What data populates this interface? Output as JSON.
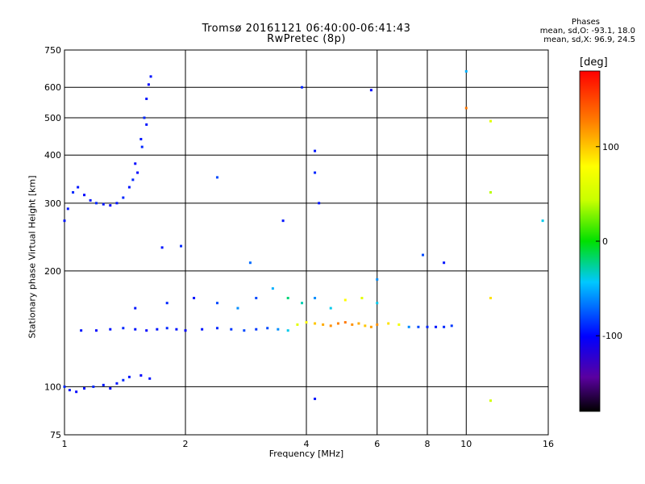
{
  "chart_data": {
    "type": "scatter",
    "title_line1": "Tromsø 20161121 06:40:00-06:41:43",
    "title_line2": "RwPretec (8p)",
    "xlabel": "Frequency [MHz]",
    "ylabel": "Stationary phase Virtual Height [km]",
    "x_scale": "log",
    "y_scale": "log",
    "xlim": [
      1,
      16
    ],
    "ylim": [
      75,
      750
    ],
    "x_ticks": [
      1,
      2,
      4,
      6,
      8,
      10,
      16
    ],
    "x_tick_labels": [
      "1",
      "2",
      "4",
      "6",
      "8",
      "10",
      "16"
    ],
    "y_ticks": [
      75,
      100,
      200,
      300,
      400,
      500,
      600,
      750
    ],
    "y_tick_labels": [
      "75",
      "100",
      "200",
      "300",
      "400",
      "500",
      "600",
      "750"
    ],
    "grid": true,
    "stats": {
      "heading": "Phases",
      "o_mode": "mean, sd,O: -93.1, 18.0",
      "x_mode": "mean, sd,X:  96.9, 24.5"
    },
    "colorbar": {
      "unit": "[deg]",
      "range": [
        -180,
        180
      ],
      "ticks": [
        -100,
        0,
        100
      ],
      "tick_labels": [
        "-100",
        "0",
        "100"
      ]
    },
    "series": [
      {
        "points": [
          [
            1.0,
            270,
            -95
          ],
          [
            1.02,
            290,
            -95
          ],
          [
            1.05,
            320,
            -90
          ],
          [
            1.08,
            330,
            -95
          ],
          [
            1.12,
            315,
            -100
          ],
          [
            1.16,
            305,
            -95
          ],
          [
            1.2,
            300,
            -90
          ],
          [
            1.25,
            298,
            -95
          ],
          [
            1.3,
            296,
            -100
          ],
          [
            1.35,
            300,
            -95
          ],
          [
            1.4,
            310,
            -90
          ],
          [
            1.45,
            330,
            -95
          ],
          [
            1.5,
            380,
            -100
          ],
          [
            1.55,
            440,
            -95
          ],
          [
            1.58,
            500,
            -90
          ],
          [
            1.6,
            560,
            -95
          ],
          [
            1.62,
            610,
            -100
          ],
          [
            1.64,
            640,
            -95
          ],
          [
            1.56,
            420,
            -90
          ],
          [
            1.6,
            480,
            -95
          ],
          [
            1.52,
            360,
            -100
          ],
          [
            1.48,
            345,
            -90
          ],
          [
            1.0,
            100,
            -90
          ],
          [
            1.03,
            98,
            -95
          ],
          [
            1.07,
            97,
            -100
          ],
          [
            1.12,
            99,
            -95
          ],
          [
            1.18,
            100,
            -90
          ],
          [
            1.25,
            101,
            -95
          ],
          [
            1.3,
            99,
            -100
          ],
          [
            1.35,
            102,
            -95
          ],
          [
            1.4,
            104,
            -90
          ],
          [
            1.45,
            106,
            -95
          ],
          [
            1.55,
            107,
            -100
          ],
          [
            1.63,
            105,
            -95
          ],
          [
            1.1,
            140,
            -95
          ],
          [
            1.2,
            140,
            -100
          ],
          [
            1.3,
            141,
            -95
          ],
          [
            1.4,
            142,
            -90
          ],
          [
            1.5,
            141,
            -95
          ],
          [
            1.6,
            140,
            -100
          ],
          [
            1.7,
            141,
            -95
          ],
          [
            1.8,
            142,
            -90
          ],
          [
            1.9,
            141,
            -95
          ],
          [
            2.0,
            140,
            -100
          ],
          [
            2.2,
            141,
            -95
          ],
          [
            2.4,
            142,
            -90
          ],
          [
            2.6,
            141,
            -85
          ],
          [
            2.8,
            140,
            -80
          ],
          [
            3.0,
            141,
            -85
          ],
          [
            3.2,
            142,
            -80
          ],
          [
            3.4,
            141,
            -60
          ],
          [
            3.6,
            140,
            -40
          ],
          [
            3.8,
            145,
            60
          ],
          [
            4.0,
            147,
            80
          ],
          [
            4.2,
            146,
            100
          ],
          [
            4.4,
            145,
            110
          ],
          [
            4.6,
            144,
            120
          ],
          [
            4.8,
            146,
            125
          ],
          [
            5.0,
            147,
            130
          ],
          [
            5.2,
            145,
            120
          ],
          [
            5.4,
            146,
            110
          ],
          [
            5.6,
            144,
            100
          ],
          [
            5.8,
            143,
            115
          ],
          [
            6.0,
            145,
            120
          ],
          [
            6.4,
            146,
            90
          ],
          [
            6.8,
            145,
            70
          ],
          [
            7.2,
            143,
            -60
          ],
          [
            7.6,
            143,
            -80
          ],
          [
            8.0,
            143,
            -90
          ],
          [
            8.4,
            143,
            -95
          ],
          [
            8.8,
            143,
            -90
          ],
          [
            9.2,
            144,
            -85
          ],
          [
            1.5,
            160,
            -95
          ],
          [
            1.8,
            165,
            -90
          ],
          [
            2.1,
            170,
            -95
          ],
          [
            2.4,
            165,
            -80
          ],
          [
            2.7,
            160,
            -60
          ],
          [
            3.0,
            170,
            -80
          ],
          [
            3.3,
            180,
            -50
          ],
          [
            3.6,
            170,
            -20
          ],
          [
            3.9,
            165,
            -30
          ],
          [
            4.2,
            170,
            -60
          ],
          [
            4.6,
            160,
            -40
          ],
          [
            5.0,
            168,
            80
          ],
          [
            5.5,
            170,
            60
          ],
          [
            6.0,
            165,
            -40
          ],
          [
            1.75,
            230,
            -95
          ],
          [
            1.95,
            232,
            -90
          ],
          [
            2.4,
            350,
            -80
          ],
          [
            2.9,
            210,
            -70
          ],
          [
            3.5,
            270,
            -95
          ],
          [
            3.9,
            600,
            -90
          ],
          [
            4.2,
            410,
            -95
          ],
          [
            4.2,
            360,
            -90
          ],
          [
            4.3,
            300,
            -95
          ],
          [
            5.8,
            590,
            -100
          ],
          [
            6.0,
            190,
            -60
          ],
          [
            7.8,
            220,
            -80
          ],
          [
            8.8,
            210,
            -95
          ],
          [
            10.0,
            660,
            -50
          ],
          [
            10.0,
            530,
            130
          ],
          [
            11.5,
            490,
            60
          ],
          [
            11.5,
            320,
            40
          ],
          [
            11.5,
            170,
            90
          ],
          [
            15.5,
            270,
            -40
          ],
          [
            4.2,
            93,
            -95
          ],
          [
            11.5,
            92,
            50
          ]
        ]
      }
    ]
  }
}
